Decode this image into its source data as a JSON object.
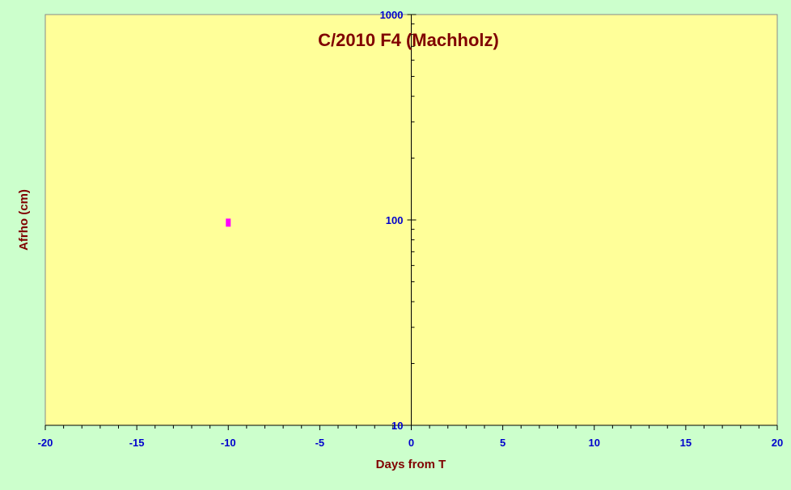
{
  "colors": {
    "background": "#ccffcc",
    "plot_area": "#ffff99",
    "axis_line": "#000000",
    "title": "#800000",
    "axis_title": "#800000",
    "tick_label": "#0000cc",
    "marker": "#ff00ff"
  },
  "chart_data": {
    "type": "scatter",
    "title": "C/2010 F4 (Machholz)",
    "xlabel": "Days from T",
    "ylabel": "Afrho (cm)",
    "xlim": [
      -20,
      20
    ],
    "ylim": [
      10,
      1000
    ],
    "y_scale": "log",
    "grid": false,
    "legend": "none",
    "x_ticks": [
      -20,
      -15,
      -10,
      -5,
      0,
      5,
      10,
      15,
      20
    ],
    "x_tick_labels": [
      "-20",
      "-15",
      "-10",
      "-5",
      "0",
      "5",
      "10",
      "15",
      "20"
    ],
    "y_ticks": [
      10,
      100,
      1000
    ],
    "y_tick_labels": [
      "10",
      "100",
      "1000"
    ],
    "series": [
      {
        "marker": "square",
        "color": "#ff00ff",
        "points": [
          {
            "x": -10,
            "y": 97
          }
        ]
      }
    ]
  }
}
